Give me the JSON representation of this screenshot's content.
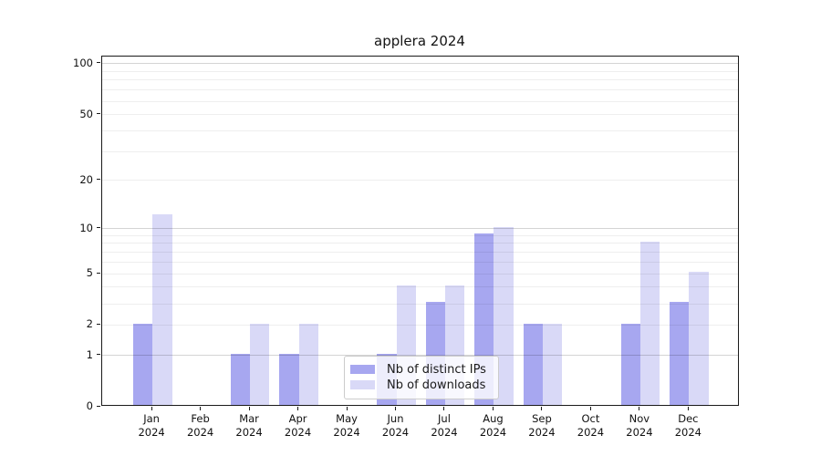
{
  "title": "applera 2024",
  "chart_data": {
    "type": "bar",
    "title": "applera 2024",
    "categories": [
      "Jan",
      "Feb",
      "Mar",
      "Apr",
      "May",
      "Jun",
      "Jul",
      "Aug",
      "Sep",
      "Oct",
      "Nov",
      "Dec"
    ],
    "category_year": "2024",
    "series": [
      {
        "name": "Nb of distinct IPs",
        "color": "#a7a7f0",
        "values": [
          2,
          0,
          1,
          1,
          0,
          1,
          3,
          9,
          2,
          0,
          2,
          3
        ]
      },
      {
        "name": "Nb of downloads",
        "color": "#d9d9f7",
        "values": [
          12,
          0,
          2,
          2,
          0,
          4,
          4,
          10,
          2,
          0,
          8,
          5
        ]
      }
    ],
    "xlabel": "",
    "ylabel": "",
    "yscale": "log1p",
    "ylim": [
      0,
      110.4
    ],
    "yticks": [
      0,
      1,
      2,
      5,
      10,
      20,
      50,
      100
    ],
    "ytick_labels": [
      "0",
      "1",
      "2",
      "5",
      "10",
      "20",
      "50",
      "100"
    ],
    "major_grid_values": [
      1,
      10,
      100
    ],
    "minor_grid_values": [
      2,
      3,
      4,
      5,
      6,
      7,
      8,
      9,
      20,
      30,
      40,
      50,
      60,
      70,
      80,
      90
    ],
    "grid": "horizontal",
    "bar_width_fraction": 0.4,
    "legend_position": "lower center-left inside"
  },
  "legend": {
    "items": [
      {
        "label": "Nb of distinct IPs",
        "color": "#a7a7f0"
      },
      {
        "label": "Nb of downloads",
        "color": "#d9d9f7"
      }
    ]
  }
}
